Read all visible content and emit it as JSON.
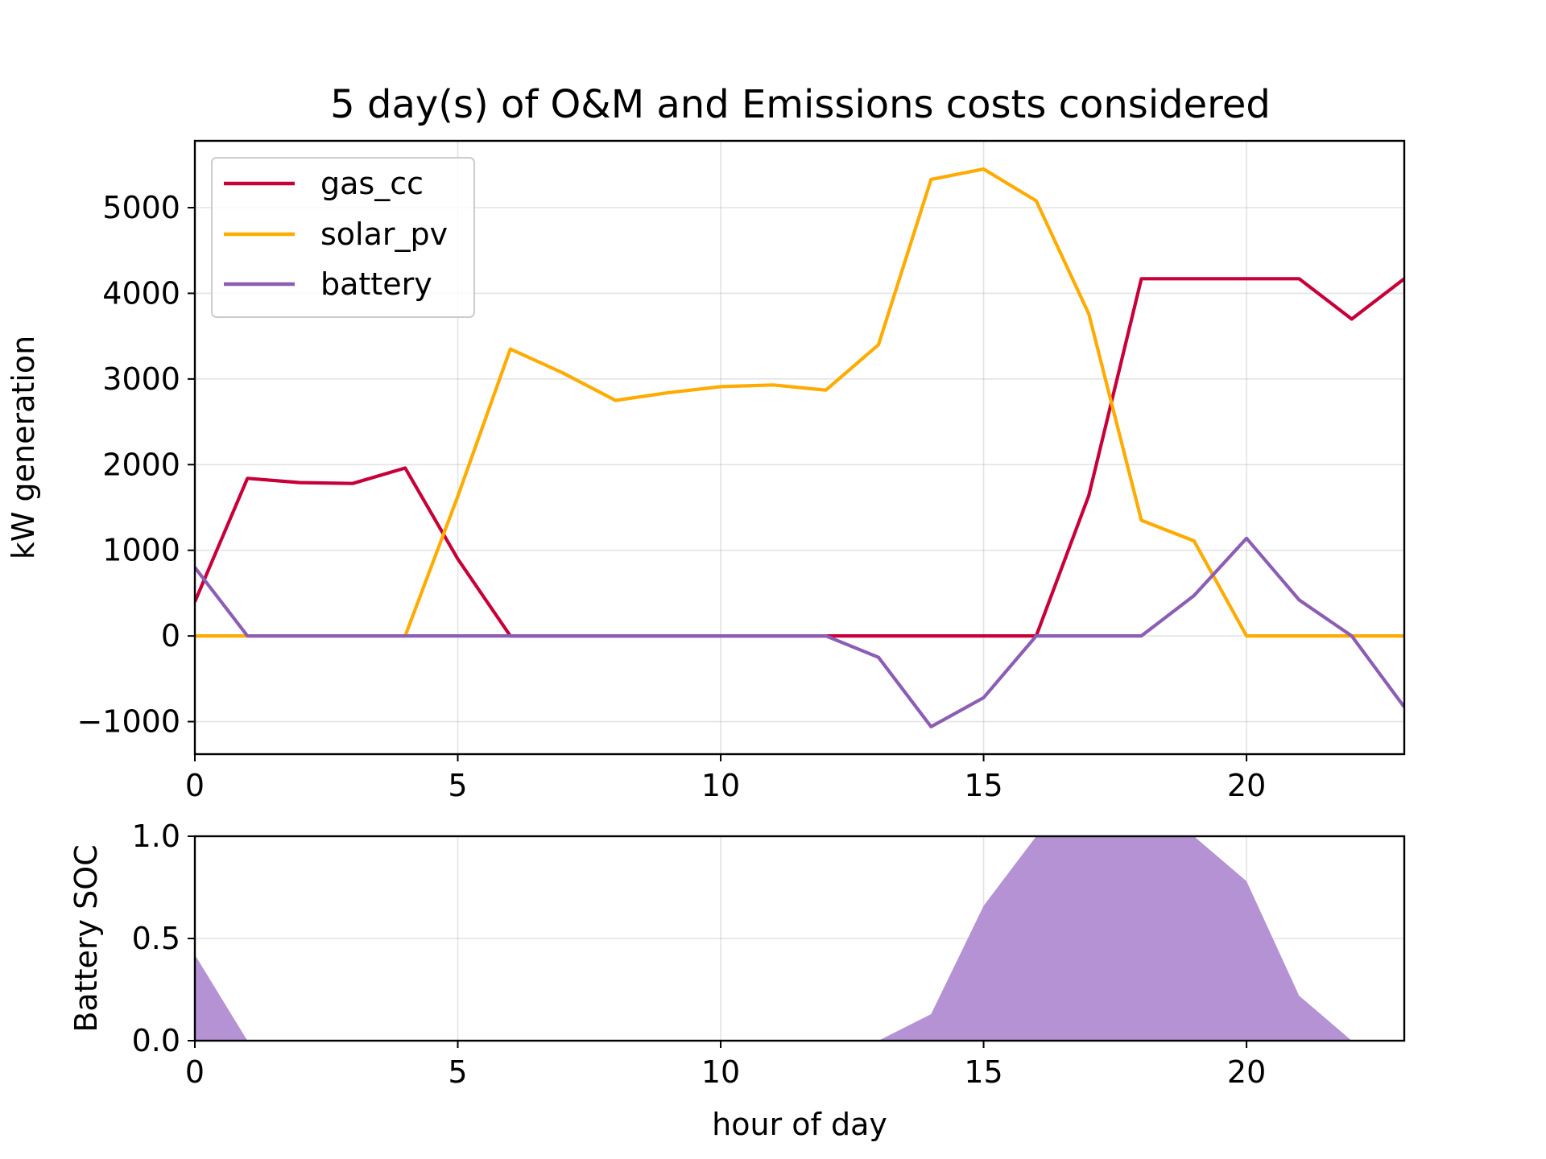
{
  "chart_data": [
    {
      "type": "line",
      "title": "5 day(s) of O&M and Emissions costs considered",
      "xlabel": "",
      "ylabel": "kW generation",
      "xlim": [
        0,
        23
      ],
      "ylim": [
        -1380,
        5780
      ],
      "xticks": [
        0,
        5,
        10,
        15,
        20
      ],
      "yticks": [
        -1000,
        0,
        1000,
        2000,
        3000,
        4000,
        5000
      ],
      "ytick_labels": [
        "−1000",
        "0",
        "1000",
        "2000",
        "3000",
        "4000",
        "5000"
      ],
      "grid": true,
      "legend_position": "upper-left",
      "x": [
        0,
        1,
        2,
        3,
        4,
        5,
        6,
        7,
        8,
        9,
        10,
        11,
        12,
        13,
        14,
        15,
        16,
        17,
        18,
        19,
        20,
        21,
        22,
        23
      ],
      "series": [
        {
          "name": "gas_cc",
          "color": "#c70039",
          "values": [
            400,
            1840,
            1790,
            1780,
            1960,
            900,
            0,
            0,
            0,
            0,
            0,
            0,
            0,
            0,
            0,
            0,
            0,
            1640,
            4170,
            4170,
            4170,
            4170,
            3700,
            4170
          ]
        },
        {
          "name": "solar_pv",
          "color": "#ffab00",
          "values": [
            0,
            0,
            0,
            0,
            0,
            1630,
            3350,
            3070,
            2750,
            2840,
            2910,
            2930,
            2870,
            3400,
            5330,
            5450,
            5080,
            3760,
            1350,
            1110,
            0,
            0,
            0,
            0
          ]
        },
        {
          "name": "battery",
          "color": "#8c5db5",
          "values": [
            800,
            0,
            0,
            0,
            0,
            0,
            0,
            0,
            0,
            0,
            0,
            0,
            0,
            -250,
            -1060,
            -720,
            0,
            0,
            0,
            470,
            1140,
            420,
            0,
            -830
          ]
        }
      ]
    },
    {
      "type": "area",
      "xlabel": "hour of day",
      "ylabel": "Battery SOC",
      "xlim": [
        0,
        23
      ],
      "ylim": [
        0,
        1
      ],
      "xticks": [
        0,
        5,
        10,
        15,
        20
      ],
      "yticks": [
        0,
        0.5,
        1
      ],
      "ytick_labels": [
        "0.0",
        "0.5",
        "1.0"
      ],
      "grid": true,
      "x": [
        0,
        1,
        2,
        3,
        4,
        5,
        6,
        7,
        8,
        9,
        10,
        11,
        12,
        13,
        14,
        15,
        16,
        17,
        18,
        19,
        20,
        21,
        22,
        23
      ],
      "series": [
        {
          "color": "#b592d4",
          "values": [
            0.42,
            0,
            0,
            0,
            0,
            0,
            0,
            0,
            0,
            0,
            0,
            0,
            0,
            0,
            0.13,
            0.66,
            1.0,
            1.0,
            1.0,
            1.0,
            0.78,
            0.22,
            0,
            0
          ]
        }
      ]
    }
  ]
}
